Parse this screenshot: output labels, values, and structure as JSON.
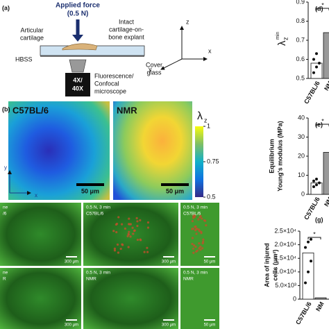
{
  "panel_a": {
    "label": "(a)",
    "force": "Applied force",
    "force_value": "(0.5 N)",
    "explant": [
      "Intact",
      "cartilage-on-",
      "bone explant"
    ],
    "cartilage": [
      "Articular",
      "cartilage"
    ],
    "hbss": "HBSS",
    "cover": [
      "Cover",
      "glass"
    ],
    "objective": [
      "4X/",
      "40X"
    ],
    "microscope": [
      "Fluorescence/",
      "Confocal",
      "microscope"
    ],
    "axes": {
      "z": "z",
      "y": "y",
      "x": "x"
    }
  },
  "panel_b": {
    "label": "(b)",
    "maps": [
      "C57BL/6",
      "NMR"
    ],
    "scale_bar": "50 μm",
    "colorbar": {
      "symbol": "λ",
      "subscript": "z",
      "lim": [
        0.5,
        1
      ],
      "ticks": [
        1,
        0.75,
        0.5
      ]
    },
    "axes": {
      "y": "y",
      "x": "x"
    }
  },
  "panel_c": {
    "rows": [
      [
        {
          "lines": [
            "ne",
            "/6"
          ],
          "scale_bar": "300 μm"
        },
        {
          "lines": [
            "0.5 N, 3 min",
            "C57BL/6"
          ],
          "scale_bar": "300 μm"
        },
        {
          "lines": [
            "0.5 N, 3 min",
            "C57BL/6"
          ],
          "scale_bar": "50 μm"
        }
      ],
      [
        {
          "lines": [
            "ne",
            "R"
          ],
          "scale_bar": "300 μm"
        },
        {
          "lines": [
            "0.5 N, 3 min",
            "NMR"
          ],
          "scale_bar": "300 μm"
        },
        {
          "lines": [
            "0.5 N, 3 min",
            "NMR"
          ],
          "scale_bar": "50 μm"
        }
      ]
    ]
  },
  "panel_d": {
    "label": "(d)",
    "y_label": {
      "symbol": "λ",
      "subscript": "z",
      "superscript": "min"
    },
    "categories": [
      "C57BL/6",
      "NM"
    ],
    "values": [
      0.58,
      0.74
    ],
    "points": [
      0.53,
      0.56,
      0.58,
      0.6,
      0.63
    ],
    "ylim": [
      0.5,
      0.9
    ],
    "yticks": [
      0.5,
      0.6,
      0.7,
      0.8,
      0.9
    ],
    "significance": "*"
  },
  "panel_e": {
    "label": "(e)",
    "y_label": [
      "Equilibrium",
      "Young's modulus (MPa)"
    ],
    "categories": [
      "C57BL/6",
      "NM"
    ],
    "values": [
      6,
      22
    ],
    "points": [
      4,
      5,
      6,
      7,
      8
    ],
    "ylim": [
      0,
      40
    ],
    "yticks": [
      0,
      10,
      20,
      30,
      40
    ],
    "significance": "*"
  },
  "panel_g": {
    "label": "(g)",
    "y_label": [
      "Area of injured",
      "cells (μm²)"
    ],
    "categories": [
      "C57BL/6",
      "NM"
    ],
    "values": [
      17000,
      500
    ],
    "points": [
      6000,
      10000,
      14000,
      19000,
      21000,
      22000
    ],
    "ylim": [
      0,
      25000
    ],
    "yticks": [
      0,
      {
        "value": 5000,
        "label": "5.0×10³"
      },
      {
        "value": 10000,
        "label": "1.0×10⁴"
      },
      {
        "value": 15000,
        "label": "1.5×10⁴"
      },
      {
        "value": 20000,
        "label": "2.0×10⁴"
      },
      {
        "value": 25000,
        "label": "2.5×10⁴"
      }
    ],
    "significance": "*"
  }
}
